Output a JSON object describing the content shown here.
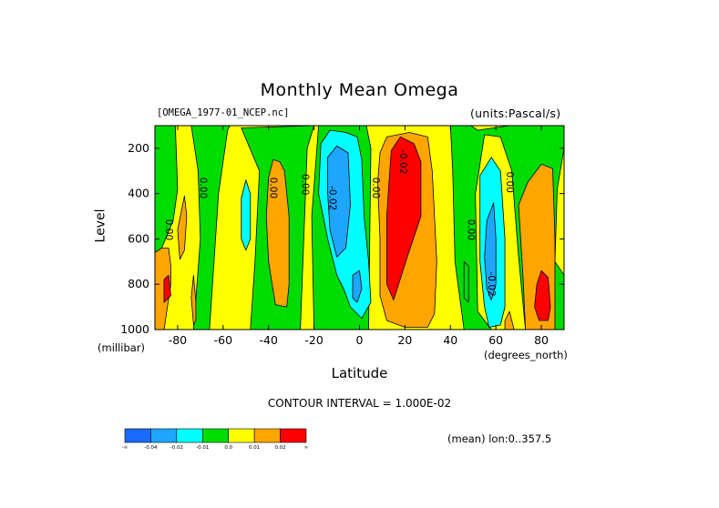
{
  "chart_data": {
    "type": "heatmap",
    "title": "Monthly Mean Omega",
    "dataset": "[OMEGA_1977-01_NCEP.nc]",
    "units": "(units:Pascal/s)",
    "xlabel": "Latitude",
    "x_units": "(degrees_north)",
    "ylabel": "Level",
    "y_units": "(millibar)",
    "xlim": [
      -90,
      90
    ],
    "ylim": [
      1000,
      100
    ],
    "x_ticks": [
      -80,
      -60,
      -40,
      -20,
      0,
      20,
      40,
      60,
      80
    ],
    "y_ticks": [
      200,
      400,
      600,
      800,
      1000
    ],
    "contour_interval_text": "CONTOUR INTERVAL = 1.000E-02",
    "subtitle": "(mean) lon:0..357.5",
    "colorbar": {
      "colors": [
        "#1a6aff",
        "#1ea6ff",
        "#00ffff",
        "#00dc00",
        "#ffff00",
        "#ffa500",
        "#ff0000"
      ],
      "labels": [
        "-∞",
        "-0.04",
        "-0.02",
        "-0.01",
        "0.0",
        "0.01",
        "0.02",
        "∞"
      ]
    },
    "contour_labels": [
      {
        "text": "0.00",
        "lat": -84,
        "lev": 560
      },
      {
        "text": "0.00",
        "lat": -69,
        "lev": 375
      },
      {
        "text": "0.00",
        "lat": -38,
        "lev": 375
      },
      {
        "text": "0.00",
        "lat": -24,
        "lev": 360
      },
      {
        "text": "-0.02",
        "lat": -12,
        "lev": 420
      },
      {
        "text": "0.00",
        "lat": 7,
        "lev": 375
      },
      {
        "text": "-0.02",
        "lat": 19,
        "lev": 260
      },
      {
        "text": "0.00",
        "lat": 49,
        "lev": 560
      },
      {
        "text": "-0.02",
        "lat": 58,
        "lev": 800
      },
      {
        "text": "0.00",
        "lat": 66,
        "lev": 350
      }
    ],
    "regions": [
      {
        "level": "zero",
        "points": [
          [
            -90,
            100
          ],
          [
            90,
            100
          ],
          [
            90,
            1000
          ],
          [
            -90,
            1000
          ]
        ]
      },
      {
        "level": "neg1",
        "points": [
          [
            -90,
            100
          ],
          [
            -81,
            100
          ],
          [
            -80,
            380
          ],
          [
            -82,
            520
          ],
          [
            -87,
            640
          ],
          [
            -90,
            660
          ]
        ]
      },
      {
        "level": "neg1",
        "points": [
          [
            -74,
            100
          ],
          [
            -57,
            100
          ],
          [
            -58,
            120
          ],
          [
            -62,
            400
          ],
          [
            -66,
            1000
          ],
          [
            -73,
            1000
          ],
          [
            -70,
            600
          ],
          [
            -71,
            300
          ]
        ]
      },
      {
        "level": "neg1",
        "points": [
          [
            -52,
            110
          ],
          [
            -20,
            100
          ],
          [
            -23,
            200
          ],
          [
            -26,
            1000
          ],
          [
            -48,
            1000
          ],
          [
            -46,
            700
          ],
          [
            -44,
            300
          ]
        ]
      },
      {
        "level": "neg1",
        "points": [
          [
            -18,
            100
          ],
          [
            3,
            100
          ],
          [
            5,
            200
          ],
          [
            4,
            1000
          ],
          [
            -20,
            1000
          ],
          [
            -21,
            500
          ]
        ]
      },
      {
        "level": "neg1",
        "points": [
          [
            47,
            300
          ],
          [
            49,
            360
          ],
          [
            48,
            540
          ],
          [
            46,
            560
          ],
          [
            45,
            450
          ]
        ]
      },
      {
        "level": "neg1",
        "points": [
          [
            40,
            100
          ],
          [
            49,
            100
          ],
          [
            52,
            120
          ],
          [
            66,
            100
          ],
          [
            90,
            100
          ],
          [
            90,
            200
          ],
          [
            87,
            380
          ],
          [
            86,
            700
          ],
          [
            90,
            760
          ],
          [
            90,
            1000
          ],
          [
            73,
            1000
          ],
          [
            70,
            680
          ],
          [
            67,
            300
          ],
          [
            62,
            150
          ],
          [
            55,
            140
          ],
          [
            51,
            400
          ],
          [
            52,
            920
          ],
          [
            58,
            1000
          ],
          [
            46,
            1000
          ],
          [
            42,
            700
          ],
          [
            41,
            300
          ]
        ]
      },
      {
        "level": "neg1",
        "points": [
          [
            46,
            700
          ],
          [
            48,
            720
          ],
          [
            48,
            880
          ],
          [
            46,
            860
          ]
        ]
      },
      {
        "level": "neg2",
        "points": [
          [
            -50,
            340
          ],
          [
            -48,
            400
          ],
          [
            -48,
            600
          ],
          [
            -50,
            650
          ],
          [
            -52,
            600
          ],
          [
            -52,
            420
          ]
        ]
      },
      {
        "level": "neg2",
        "points": [
          [
            -17,
            180
          ],
          [
            -13,
            120
          ],
          [
            -6,
            130
          ],
          [
            -1,
            150
          ],
          [
            1,
            250
          ],
          [
            2,
            500
          ],
          [
            4,
            700
          ],
          [
            5,
            880
          ],
          [
            1,
            950
          ],
          [
            -4,
            900
          ],
          [
            -7,
            820
          ],
          [
            -10,
            760
          ],
          [
            -14,
            600
          ],
          [
            -18,
            400
          ]
        ]
      },
      {
        "level": "neg2",
        "points": [
          [
            53,
            320
          ],
          [
            58,
            240
          ],
          [
            62,
            300
          ],
          [
            64,
            600
          ],
          [
            64,
            900
          ],
          [
            62,
            980
          ],
          [
            57,
            990
          ],
          [
            55,
            900
          ],
          [
            53,
            700
          ],
          [
            53,
            500
          ]
        ]
      },
      {
        "level": "neg3",
        "points": [
          [
            -14,
            240
          ],
          [
            -10,
            190
          ],
          [
            -5,
            220
          ],
          [
            -4,
            450
          ],
          [
            -6,
            640
          ],
          [
            -10,
            680
          ],
          [
            -13,
            560
          ],
          [
            -14,
            400
          ]
        ]
      },
      {
        "level": "neg3",
        "points": [
          [
            -3,
            760
          ],
          [
            0,
            740
          ],
          [
            1,
            820
          ],
          [
            -1,
            880
          ],
          [
            -3,
            860
          ]
        ]
      },
      {
        "level": "neg3",
        "points": [
          [
            56,
            520
          ],
          [
            59,
            440
          ],
          [
            60,
            600
          ],
          [
            60,
            800
          ],
          [
            58,
            870
          ],
          [
            56,
            820
          ],
          [
            55,
            680
          ]
        ]
      },
      {
        "level": "pos1",
        "points": [
          [
            -90,
            660
          ],
          [
            -87,
            640
          ],
          [
            -84,
            640
          ],
          [
            -83,
            720
          ],
          [
            -83,
            800
          ],
          [
            -86,
            1000
          ],
          [
            -90,
            1000
          ]
        ]
      },
      {
        "level": "pos1",
        "points": [
          [
            -80,
            560
          ],
          [
            -77,
            410
          ],
          [
            -76,
            500
          ],
          [
            -77,
            650
          ],
          [
            -79,
            690
          ]
        ]
      },
      {
        "level": "pos1",
        "points": [
          [
            -73,
            760
          ],
          [
            -72,
            880
          ],
          [
            -72,
            960
          ],
          [
            -73,
            980
          ],
          [
            -74,
            860
          ]
        ]
      },
      {
        "level": "pos1",
        "points": [
          [
            -40,
            330
          ],
          [
            -38,
            250
          ],
          [
            -35,
            260
          ],
          [
            -33,
            300
          ],
          [
            -31,
            500
          ],
          [
            -31,
            800
          ],
          [
            -32,
            900
          ],
          [
            -37,
            890
          ],
          [
            -40,
            700
          ],
          [
            -41,
            500
          ]
        ]
      },
      {
        "level": "pos1",
        "points": [
          [
            9,
            220
          ],
          [
            12,
            150
          ],
          [
            22,
            130
          ],
          [
            30,
            150
          ],
          [
            32,
            300
          ],
          [
            34,
            700
          ],
          [
            33,
            930
          ],
          [
            30,
            990
          ],
          [
            20,
            990
          ],
          [
            12,
            960
          ],
          [
            9,
            850
          ],
          [
            9,
            600
          ],
          [
            8,
            350
          ]
        ]
      },
      {
        "level": "pos1",
        "points": [
          [
            70,
            450
          ],
          [
            74,
            350
          ],
          [
            80,
            270
          ],
          [
            85,
            290
          ],
          [
            86,
            600
          ],
          [
            86,
            1000
          ],
          [
            73,
            1000
          ],
          [
            72,
            780
          ]
        ]
      },
      {
        "level": "pos1",
        "points": [
          [
            64,
            960
          ],
          [
            66,
            920
          ],
          [
            68,
            1000
          ],
          [
            64,
            1000
          ]
        ]
      },
      {
        "level": "pos2",
        "points": [
          [
            -86,
            780
          ],
          [
            -84,
            760
          ],
          [
            -83,
            850
          ],
          [
            -86,
            880
          ]
        ]
      },
      {
        "level": "pos2",
        "points": [
          [
            14,
            210
          ],
          [
            18,
            150
          ],
          [
            24,
            180
          ],
          [
            27,
            260
          ],
          [
            27,
            500
          ],
          [
            21,
            680
          ],
          [
            15,
            870
          ],
          [
            12,
            800
          ],
          [
            12,
            500
          ],
          [
            13,
            350
          ]
        ]
      },
      {
        "level": "pos2",
        "points": [
          [
            78,
            800
          ],
          [
            80,
            740
          ],
          [
            83,
            770
          ],
          [
            84,
            900
          ],
          [
            83,
            960
          ],
          [
            79,
            960
          ],
          [
            77,
            900
          ]
        ]
      }
    ]
  }
}
